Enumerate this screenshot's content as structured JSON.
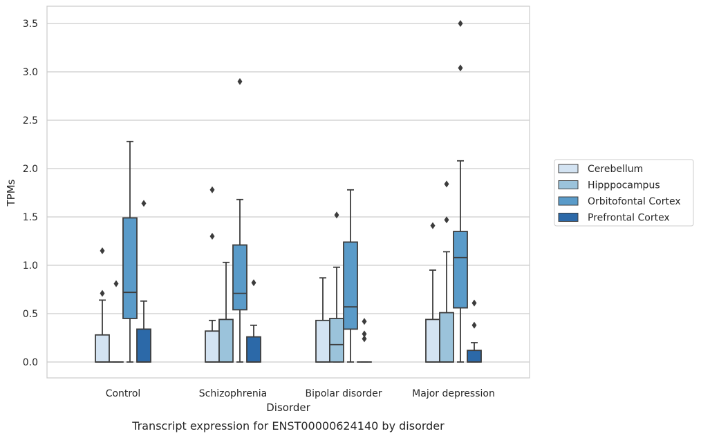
{
  "chart_data": {
    "type": "box",
    "title": "Transcript expression for ENST00000624140 by disorder",
    "xlabel": "Disorder",
    "ylabel": "TPMs",
    "ylim": [
      -0.17,
      3.68
    ],
    "yticks": [
      "0.0",
      "0.5",
      "1.0",
      "1.5",
      "2.0",
      "2.5",
      "3.0",
      "3.5"
    ],
    "grid": true,
    "legend_position": "right",
    "categories": [
      "Control",
      "Schizophrenia",
      "Bipolar disorder",
      "Major depression"
    ],
    "series": [
      {
        "name": "Cerebellum",
        "color": "#d3e3f2",
        "boxes": [
          {
            "q1": 0.0,
            "median": 0.0,
            "q3": 0.28,
            "whisker_low": 0.0,
            "whisker_high": 0.64,
            "outliers": [
              0.71,
              1.15
            ]
          },
          {
            "q1": 0.0,
            "median": 0.0,
            "q3": 0.32,
            "whisker_low": 0.0,
            "whisker_high": 0.43,
            "outliers": [
              1.3,
              1.78
            ]
          },
          {
            "q1": 0.0,
            "median": 0.0,
            "q3": 0.43,
            "whisker_low": 0.0,
            "whisker_high": 0.87,
            "outliers": []
          },
          {
            "q1": 0.0,
            "median": 0.0,
            "q3": 0.44,
            "whisker_low": 0.0,
            "whisker_high": 0.95,
            "outliers": [
              1.41
            ]
          }
        ]
      },
      {
        "name": "Hipppocampus",
        "color": "#9bc3db",
        "boxes": [
          {
            "q1": 0.0,
            "median": 0.0,
            "q3": 0.0,
            "whisker_low": 0.0,
            "whisker_high": 0.0,
            "outliers": [
              0.81
            ]
          },
          {
            "q1": 0.0,
            "median": 0.0,
            "q3": 0.44,
            "whisker_low": 0.0,
            "whisker_high": 1.03,
            "outliers": []
          },
          {
            "q1": 0.0,
            "median": 0.18,
            "q3": 0.45,
            "whisker_low": 0.0,
            "whisker_high": 0.98,
            "outliers": [
              1.52
            ]
          },
          {
            "q1": 0.0,
            "median": 0.0,
            "q3": 0.51,
            "whisker_low": 0.0,
            "whisker_high": 1.14,
            "outliers": [
              1.47,
              1.84
            ]
          }
        ]
      },
      {
        "name": "Orbitofontal Cortex",
        "color": "#5a9bc9",
        "boxes": [
          {
            "q1": 0.45,
            "median": 0.72,
            "q3": 1.49,
            "whisker_low": 0.0,
            "whisker_high": 2.28,
            "outliers": []
          },
          {
            "q1": 0.54,
            "median": 0.71,
            "q3": 1.21,
            "whisker_low": 0.0,
            "whisker_high": 1.68,
            "outliers": [
              2.9
            ]
          },
          {
            "q1": 0.34,
            "median": 0.57,
            "q3": 1.24,
            "whisker_low": 0.0,
            "whisker_high": 1.78,
            "outliers": []
          },
          {
            "q1": 0.56,
            "median": 1.08,
            "q3": 1.35,
            "whisker_low": 0.0,
            "whisker_high": 2.08,
            "outliers": [
              3.04,
              3.5
            ]
          }
        ]
      },
      {
        "name": "Prefrontal Cortex",
        "color": "#2c69a8",
        "boxes": [
          {
            "q1": 0.0,
            "median": 0.0,
            "q3": 0.34,
            "whisker_low": 0.0,
            "whisker_high": 0.63,
            "outliers": [
              1.64
            ]
          },
          {
            "q1": 0.0,
            "median": 0.0,
            "q3": 0.26,
            "whisker_low": 0.0,
            "whisker_high": 0.38,
            "outliers": [
              0.82
            ]
          },
          {
            "q1": 0.0,
            "median": 0.0,
            "q3": 0.0,
            "whisker_low": 0.0,
            "whisker_high": 0.0,
            "outliers": [
              0.24,
              0.29,
              0.42
            ]
          },
          {
            "q1": 0.0,
            "median": 0.0,
            "q3": 0.12,
            "whisker_low": 0.0,
            "whisker_high": 0.2,
            "outliers": [
              0.38,
              0.61
            ]
          }
        ]
      }
    ]
  }
}
